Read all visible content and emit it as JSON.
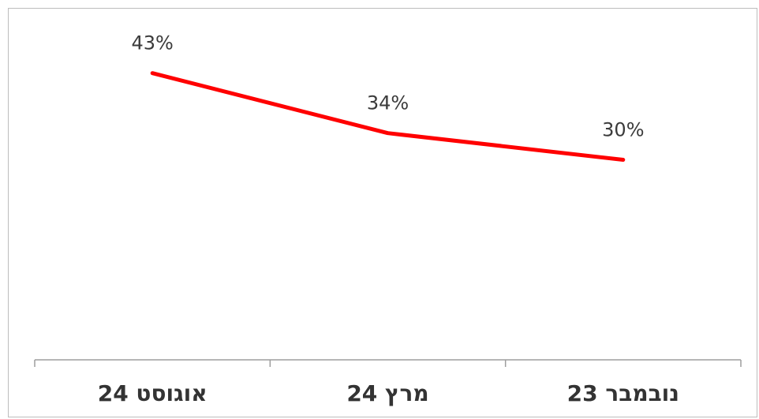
{
  "chart_data": {
    "type": "line",
    "categories": [
      "נובמבר 23",
      "מרץ 24",
      "אוגוסט 24"
    ],
    "series": [
      {
        "values": [
          30,
          34,
          43
        ],
        "labels": [
          "30%",
          "34%",
          "43%"
        ],
        "color": "#ff0000"
      }
    ],
    "ylim": [
      0,
      50
    ],
    "grid": false,
    "legend": "none"
  }
}
